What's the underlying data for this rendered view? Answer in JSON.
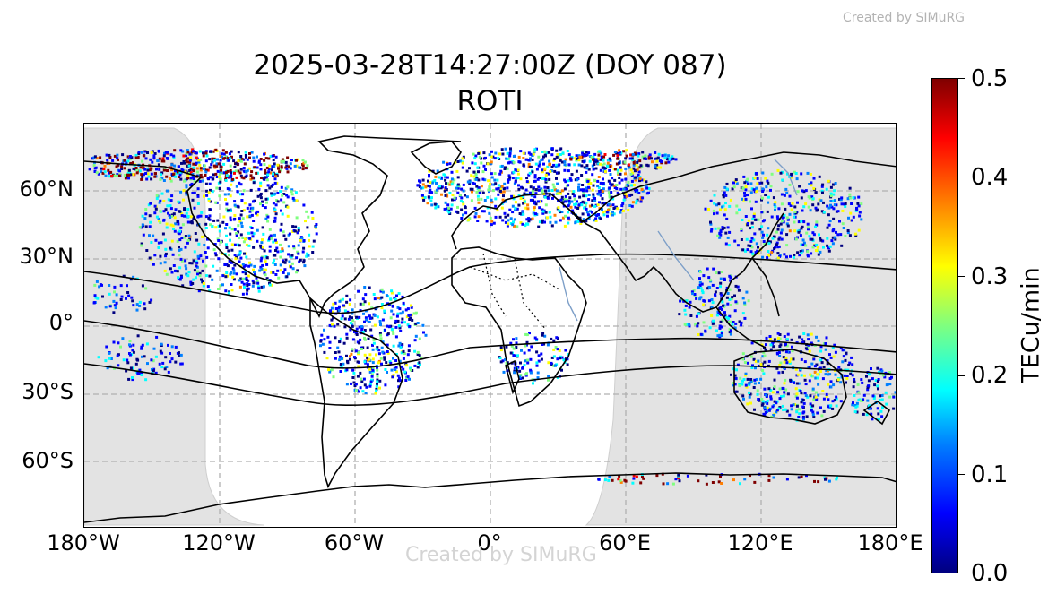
{
  "watermark_top": "Created by SIMuRG",
  "watermark_bottom": "Created by SIMuRG",
  "title_line1": "2025-03-28T14:27:00Z (DOY 087)",
  "title_line2": "ROTI",
  "y_ticks": [
    "60°N",
    "30°N",
    "0°",
    "30°S",
    "60°S"
  ],
  "x_ticks": [
    "180°W",
    "120°W",
    "60°W",
    "0°",
    "60°E",
    "120°E",
    "180°E"
  ],
  "colorbar": {
    "label": "TECu/min",
    "ticks": [
      "0.5",
      "0.4",
      "0.3",
      "0.2",
      "0.1",
      "0.0"
    ],
    "colormap": "jet",
    "range": [
      0.0,
      0.5
    ]
  },
  "map": {
    "projection": "equirectangular",
    "lon_range": [
      -180,
      180
    ],
    "lat_range": [
      -90,
      90
    ],
    "gridlines": "dashed gray",
    "night_shading_color": "#e3e3e3",
    "coastline_color": "#000000",
    "river_lake_color": "#7d9fc8"
  }
}
